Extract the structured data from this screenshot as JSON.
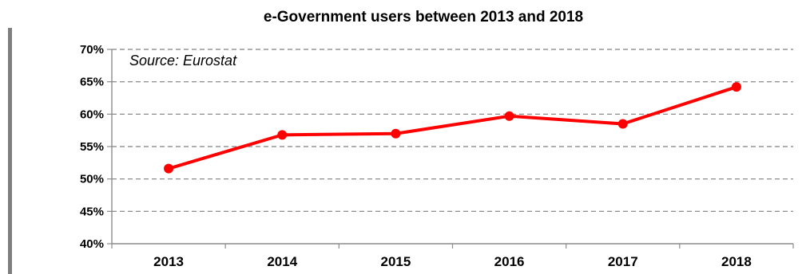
{
  "chart_data": {
    "type": "line",
    "title": "e-Government users between 2013 and 2018",
    "annotation": "Source: Eurostat",
    "categories": [
      "2013",
      "2014",
      "2015",
      "2016",
      "2017",
      "2018"
    ],
    "series": [
      {
        "values": [
          51.6,
          56.8,
          57.0,
          59.7,
          58.5,
          64.2
        ],
        "color": "#ff0000"
      }
    ],
    "ylim": [
      40,
      70
    ],
    "yticks": [
      40,
      45,
      50,
      55,
      60,
      65,
      70
    ],
    "ytick_labels": [
      "40%",
      "45%",
      "50%",
      "55%",
      "60%",
      "65%",
      "70%"
    ],
    "grid": "dashed-horizontal",
    "legend": "none",
    "xlabel": "",
    "ylabel": ""
  }
}
